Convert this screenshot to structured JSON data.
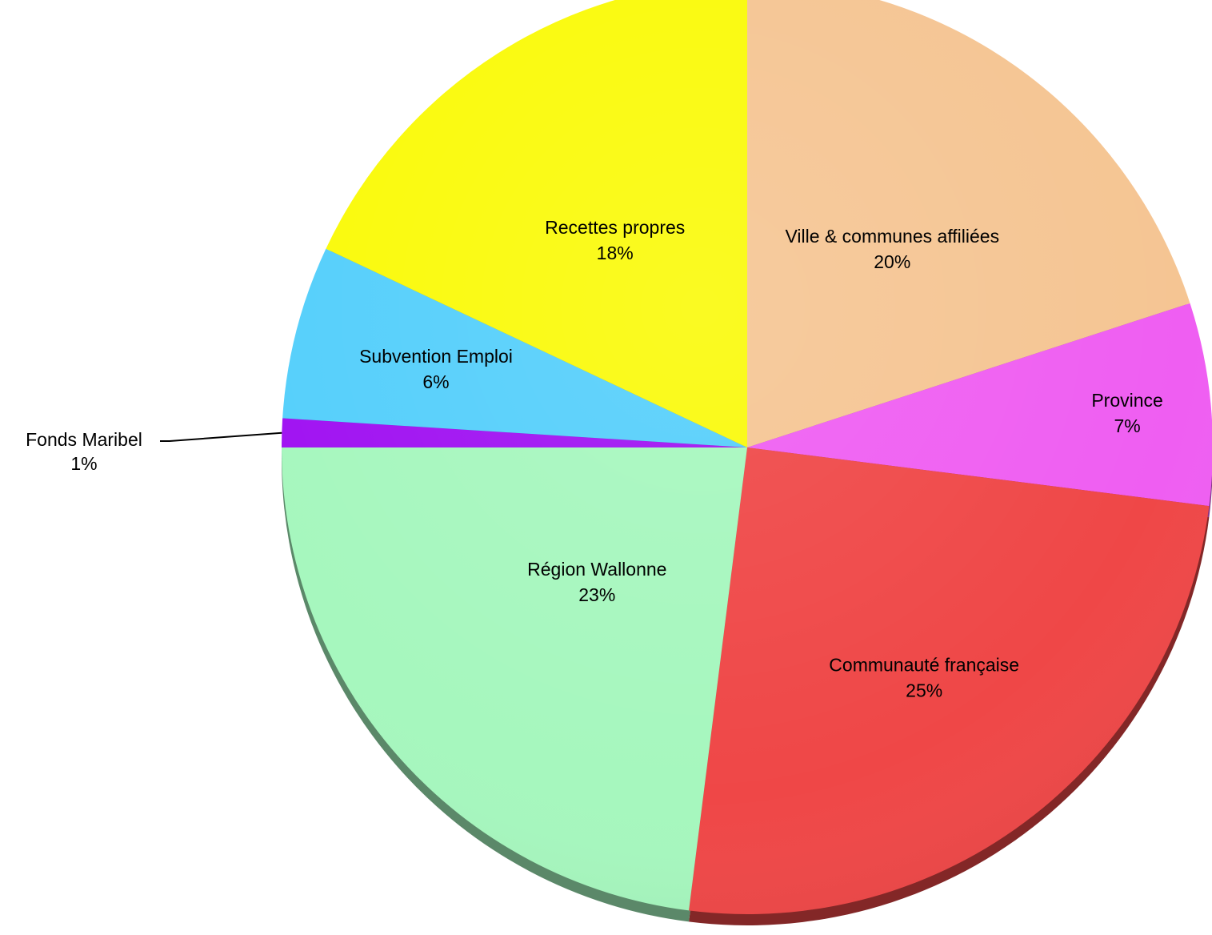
{
  "chart_data": {
    "type": "pie",
    "slices": [
      {
        "label": "Ville & communes affiliées",
        "percent_label": "20%",
        "value": 20,
        "color": "#F5C593"
      },
      {
        "label": "Province",
        "percent_label": "7%",
        "value": 7,
        "color": "#EF5EF2"
      },
      {
        "label": "Communauté française",
        "percent_label": "25%",
        "value": 25,
        "color": "#EF4747"
      },
      {
        "label": "Région Wallonne",
        "percent_label": "23%",
        "value": 23,
        "color": "#A6F7BE"
      },
      {
        "label": "Fonds Maribel",
        "percent_label": "1%",
        "value": 1,
        "color": "#A012F2"
      },
      {
        "label": "Subvention Emploi",
        "percent_label": "6%",
        "value": 6,
        "color": "#55CFFB"
      },
      {
        "label": "Recettes propres",
        "percent_label": "18%",
        "value": 18,
        "color": "#FAFA0A"
      }
    ],
    "start": "top",
    "direction": "clockwise",
    "legend": "none",
    "style": "3d-tilted"
  }
}
